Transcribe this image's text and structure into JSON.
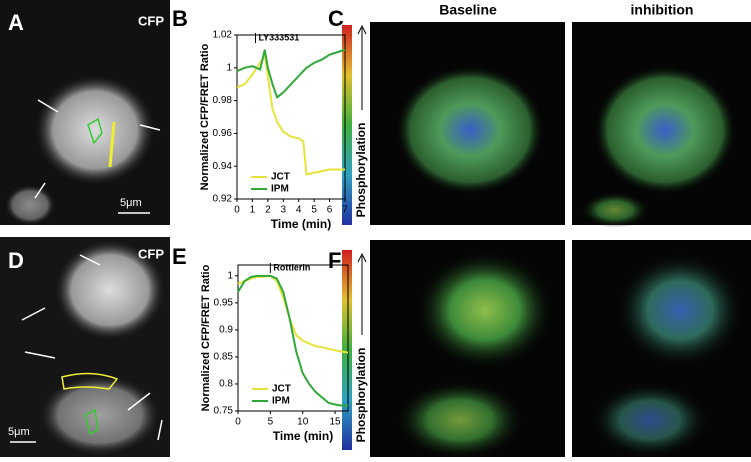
{
  "chart_data": [
    {
      "type": "line",
      "ylabel": "Normalized CFP/FRET Ratio",
      "xlabel": "Time (min)",
      "annotation": "LY333531",
      "annotation_x": 1.2,
      "x": [
        0,
        0.5,
        1,
        1.5,
        1.8,
        2,
        2.3,
        2.6,
        3,
        3.5,
        4,
        4.3,
        4.5,
        5,
        5.5,
        6,
        7
      ],
      "series": [
        {
          "name": "JCT",
          "color": "#e8e23a",
          "values": [
            0.988,
            0.99,
            0.996,
            1.003,
            1.008,
            0.995,
            0.975,
            0.967,
            0.961,
            0.958,
            0.957,
            0.955,
            0.935,
            0.936,
            0.937,
            0.938,
            0.938
          ]
        },
        {
          "name": "IPM",
          "color": "#2fa83a",
          "values": [
            0.998,
            1.0,
            1.001,
            0.999,
            1.011,
            1.0,
            0.99,
            0.982,
            0.985,
            0.99,
            0.995,
            0.998,
            1.0,
            1.003,
            1.005,
            1.008,
            1.011
          ]
        }
      ],
      "xlim": [
        0,
        7
      ],
      "xticks": [
        0,
        1,
        2,
        3,
        4,
        5,
        6,
        7
      ],
      "ylim": [
        0.92,
        1.02
      ],
      "yticks": [
        0.92,
        0.94,
        0.96,
        0.98,
        1,
        1.02
      ],
      "legend": "lower left"
    },
    {
      "type": "line",
      "ylabel": "Normalized CFP/FRET Ratio",
      "xlabel": "Time (min)",
      "annotation": "Rottlerin",
      "annotation_x": 5,
      "x": [
        0,
        1,
        2,
        3,
        4,
        5,
        6,
        7,
        8,
        9,
        10,
        11,
        12,
        13,
        14,
        15,
        16,
        17
      ],
      "series": [
        {
          "name": "JCT",
          "color": "#e8e23a",
          "values": [
            0.985,
            0.99,
            0.995,
            0.998,
            0.998,
            1.0,
            0.99,
            0.96,
            0.92,
            0.89,
            0.88,
            0.875,
            0.87,
            0.868,
            0.865,
            0.862,
            0.86,
            0.858
          ]
        },
        {
          "name": "IPM",
          "color": "#2fa83a",
          "values": [
            0.97,
            0.99,
            0.998,
            1.0,
            1.0,
            1.0,
            0.995,
            0.97,
            0.92,
            0.86,
            0.82,
            0.8,
            0.785,
            0.775,
            0.765,
            0.762,
            0.76,
            0.76
          ]
        }
      ],
      "xlim": [
        0,
        17
      ],
      "xticks": [
        0,
        5,
        10,
        15
      ],
      "ylim": [
        0.75,
        1.02
      ],
      "yticks": [
        0.75,
        0.8,
        0.85,
        0.9,
        0.95,
        1
      ],
      "legend": "lower left"
    }
  ],
  "figure": {
    "panel_labels": [
      "A",
      "B",
      "C",
      "D",
      "E",
      "F"
    ],
    "channel_labels": [
      "CFP",
      "CFP"
    ],
    "scale_bars": [
      "5μm",
      "5μm"
    ],
    "column_titles": [
      "Baseline",
      "inhibition"
    ],
    "colorbar_labels": [
      "Phosphorylation",
      "Phosphorylation"
    ]
  }
}
